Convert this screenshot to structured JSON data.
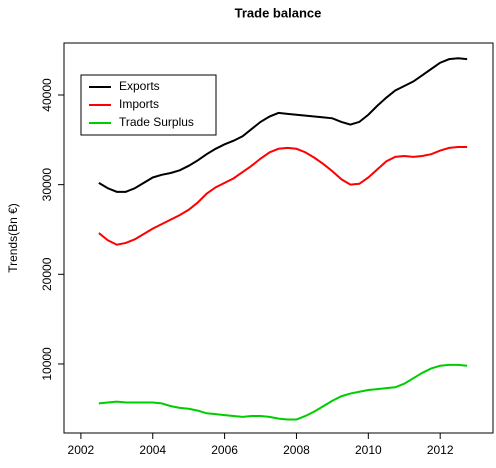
{
  "chart_data": {
    "type": "line",
    "title": "Trade balance",
    "ylabel": "Trends(Bn €)",
    "x": [
      2002.5,
      2002.75,
      2003,
      2003.25,
      2003.5,
      2003.75,
      2004,
      2004.25,
      2004.5,
      2004.75,
      2005,
      2005.25,
      2005.5,
      2005.75,
      2006,
      2006.25,
      2006.5,
      2006.75,
      2007,
      2007.25,
      2007.5,
      2007.75,
      2008,
      2008.25,
      2008.5,
      2008.75,
      2009,
      2009.25,
      2009.5,
      2009.75,
      2010,
      2010.25,
      2010.5,
      2010.75,
      2011,
      2011.25,
      2011.5,
      2011.75,
      2012,
      2012.25,
      2012.5,
      2012.75
    ],
    "series": [
      {
        "name": "Exports",
        "color": "#000000",
        "values": [
          30200,
          29600,
          29200,
          29200,
          29600,
          30200,
          30800,
          31100,
          31300,
          31600,
          32100,
          32700,
          33400,
          34000,
          34500,
          34900,
          35400,
          36200,
          37000,
          37600,
          38000,
          37900,
          37800,
          37700,
          37600,
          37500,
          37400,
          37000,
          36700,
          37000,
          37800,
          38800,
          39700,
          40500,
          41000,
          41500,
          42200,
          42900,
          43600,
          44000,
          44100,
          44000
        ]
      },
      {
        "name": "Imports",
        "color": "#ff0000",
        "values": [
          24600,
          23800,
          23300,
          23500,
          23900,
          24500,
          25100,
          25600,
          26100,
          26600,
          27200,
          28000,
          29000,
          29700,
          30200,
          30700,
          31400,
          32100,
          32900,
          33600,
          34000,
          34100,
          34000,
          33600,
          33000,
          32300,
          31500,
          30600,
          30000,
          30100,
          30800,
          31700,
          32600,
          33100,
          33200,
          33100,
          33200,
          33400,
          33800,
          34100,
          34200,
          34200
        ]
      },
      {
        "name": "Trade Surplus",
        "color": "#00cd00",
        "values": [
          5600,
          5700,
          5800,
          5700,
          5700,
          5700,
          5700,
          5600,
          5300,
          5100,
          5000,
          4800,
          4500,
          4400,
          4300,
          4200,
          4100,
          4200,
          4200,
          4100,
          3900,
          3800,
          3800,
          4200,
          4700,
          5300,
          5900,
          6400,
          6700,
          6900,
          7100,
          7200,
          7300,
          7400,
          7800,
          8400,
          9000,
          9500,
          9800,
          9900,
          9900,
          9800
        ]
      }
    ],
    "xlim": [
      2001.53,
      2013.47
    ],
    "ylim": [
      2300,
      45800
    ],
    "xticks": [
      2002,
      2004,
      2006,
      2008,
      2010,
      2012
    ],
    "yticks": [
      10000,
      20000,
      30000,
      40000
    ],
    "legend": "topleft"
  }
}
